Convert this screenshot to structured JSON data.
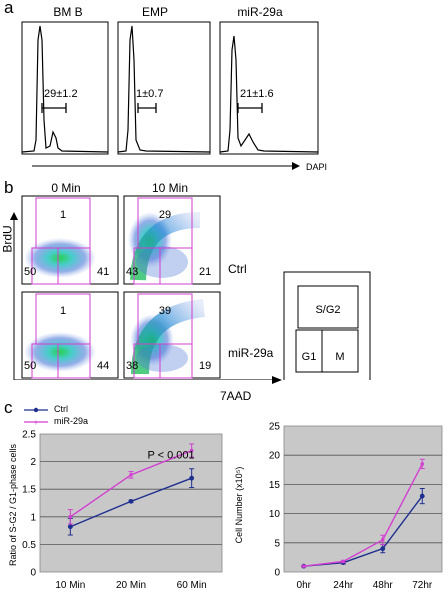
{
  "panel_a": {
    "letter": "a",
    "histograms": [
      {
        "title": "BM B",
        "gate": "29±1.2"
      },
      {
        "title": "EMP",
        "gate": "1±0.7"
      },
      {
        "title": "miR-29a",
        "gate": "21±1.6"
      }
    ],
    "xlabel": "DAPI"
  },
  "panel_b": {
    "letter": "b",
    "col_headers": [
      "0 Min",
      "10 Min"
    ],
    "row_labels": [
      "Ctrl",
      "miR-29a"
    ],
    "ylabel": "BrdU",
    "xlabel": "7AAD",
    "plots": [
      {
        "top": "1",
        "left": "50",
        "right": "41"
      },
      {
        "top": "29",
        "left": "43",
        "right": "21"
      },
      {
        "top": "1",
        "left": "50",
        "right": "44"
      },
      {
        "top": "39",
        "left": "38",
        "right": "19"
      }
    ],
    "schematic": {
      "top": "S/G2",
      "bottom_left": "G1",
      "bottom_right": "M"
    }
  },
  "panel_c": {
    "letter": "c",
    "chart_data": [
      {
        "type": "line",
        "title": "",
        "ylabel": "Ratio of S-G2 / G1-phase cells",
        "xlabel": "",
        "categories": [
          "10 Min",
          "20 Min",
          "60 Min"
        ],
        "ylim": [
          0,
          2.5
        ],
        "yticks": [
          "0",
          "0.5",
          "1",
          "1.5",
          "2",
          "2.5"
        ],
        "grid": true,
        "legend": "top-left",
        "annotation": "P < 0.001",
        "series": [
          {
            "name": "Ctrl",
            "color": "#1f2f8f",
            "values": [
              0.82,
              1.28,
              1.7
            ],
            "errors": [
              0.15,
              0.02,
              0.17
            ]
          },
          {
            "name": "miR-29a",
            "color": "#d23fd2",
            "values": [
              1.0,
              1.76,
              2.2
            ],
            "errors": [
              0.13,
              0.06,
              0.12
            ]
          }
        ]
      },
      {
        "type": "line",
        "title": "",
        "ylabel": "Cell Number (x10⁵)",
        "xlabel": "",
        "categories": [
          "0hr",
          "24hr",
          "48hr",
          "72hr"
        ],
        "ylim": [
          0,
          25
        ],
        "yticks": [
          "0",
          "5",
          "10",
          "15",
          "20",
          "25"
        ],
        "grid": true,
        "series": [
          {
            "name": "Ctrl",
            "color": "#1f2f8f",
            "values": [
              1.0,
              1.6,
              4.0,
              13.0
            ],
            "errors": [
              0.1,
              0.2,
              0.7,
              1.3
            ]
          },
          {
            "name": "miR-29a",
            "color": "#d23fd2",
            "values": [
              1.0,
              1.8,
              5.5,
              18.5
            ],
            "errors": [
              0.1,
              0.2,
              0.8,
              0.8
            ]
          }
        ]
      }
    ]
  }
}
